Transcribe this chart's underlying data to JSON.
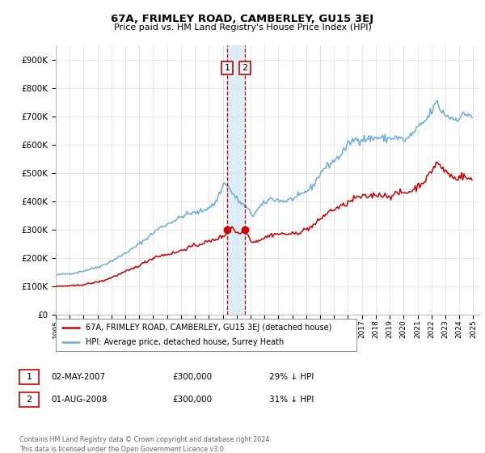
{
  "title": "67A, FRIMLEY ROAD, CAMBERLEY, GU15 3EJ",
  "subtitle": "Price paid vs. HM Land Registry's House Price Index (HPI)",
  "legend_line1": "67A, FRIMLEY ROAD, CAMBERLEY, GU15 3EJ (detached house)",
  "legend_line2": "HPI: Average price, detached house, Surrey Heath",
  "sale1_date": "02-MAY-2007",
  "sale1_price": "£300,000",
  "sale1_hpi": "29% ↓ HPI",
  "sale2_date": "01-AUG-2008",
  "sale2_price": "£300,000",
  "sale2_hpi": "31% ↓ HPI",
  "sale1_x": 2007.33,
  "sale2_x": 2008.58,
  "sale1_y": 300000,
  "sale2_y": 300000,
  "hpi_line_color": "#6baed6",
  "price_line_color": "#cc0000",
  "vline_color": "#cc0000",
  "vshade_color": "#d0e8f5",
  "background_color": "#ffffff",
  "grid_color": "#dddddd",
  "ylim": [
    0,
    950000
  ],
  "xlim_start": 1995.0,
  "xlim_end": 2025.5,
  "footer": "Contains HM Land Registry data © Crown copyright and database right 2024.\nThis data is licensed under the Open Government Licence v3.0."
}
